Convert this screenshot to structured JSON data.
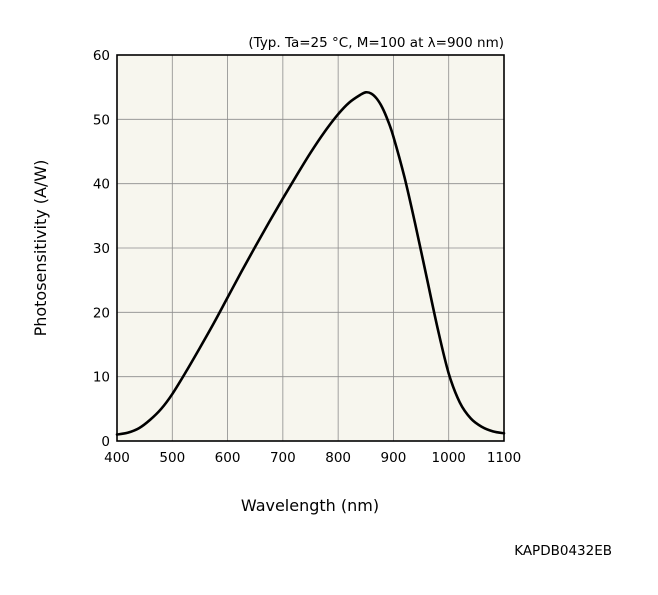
{
  "chart_data": {
    "type": "line",
    "title": "",
    "condition": "(Typ. Ta=25 °C, M=100 at λ=900 nm)",
    "xlabel": "Wavelength (nm)",
    "ylabel": "Photosensitivity (A/W)",
    "xlim": [
      400,
      1100
    ],
    "ylim": [
      0,
      60
    ],
    "xticks": [
      400,
      500,
      600,
      700,
      800,
      900,
      1000,
      1100
    ],
    "yticks": [
      0,
      10,
      20,
      30,
      40,
      50,
      60
    ],
    "xtick_labels": [
      "400",
      "500",
      "600",
      "700",
      "800",
      "900",
      "1000",
      "1100"
    ],
    "ytick_labels": [
      "0",
      "10",
      "20",
      "30",
      "40",
      "50",
      "60"
    ],
    "grid": true,
    "series": [
      {
        "x": [
          400,
          420,
          440,
          460,
          480,
          500,
          525,
          550,
          575,
          600,
          625,
          650,
          675,
          700,
          725,
          750,
          775,
          800,
          820,
          840,
          850,
          860,
          870,
          880,
          890,
          900,
          920,
          940,
          960,
          980,
          1000,
          1020,
          1040,
          1060,
          1080,
          1100
        ],
        "y": [
          1.0,
          1.3,
          2.0,
          3.3,
          5.0,
          7.3,
          10.8,
          14.5,
          18.3,
          22.3,
          26.3,
          30.2,
          34.0,
          37.7,
          41.3,
          44.8,
          48.0,
          50.8,
          52.6,
          53.8,
          54.2,
          54.0,
          53.2,
          51.8,
          49.8,
          47.3,
          41.0,
          33.5,
          25.5,
          17.5,
          10.5,
          6.0,
          3.5,
          2.2,
          1.5,
          1.2
        ]
      }
    ]
  },
  "figure_code": "KAPDB0432EB",
  "colors": {
    "plot_background": "#f7f6ee",
    "grid": "#8c8c8c",
    "frame": "#000000",
    "curve": "#000000"
  }
}
